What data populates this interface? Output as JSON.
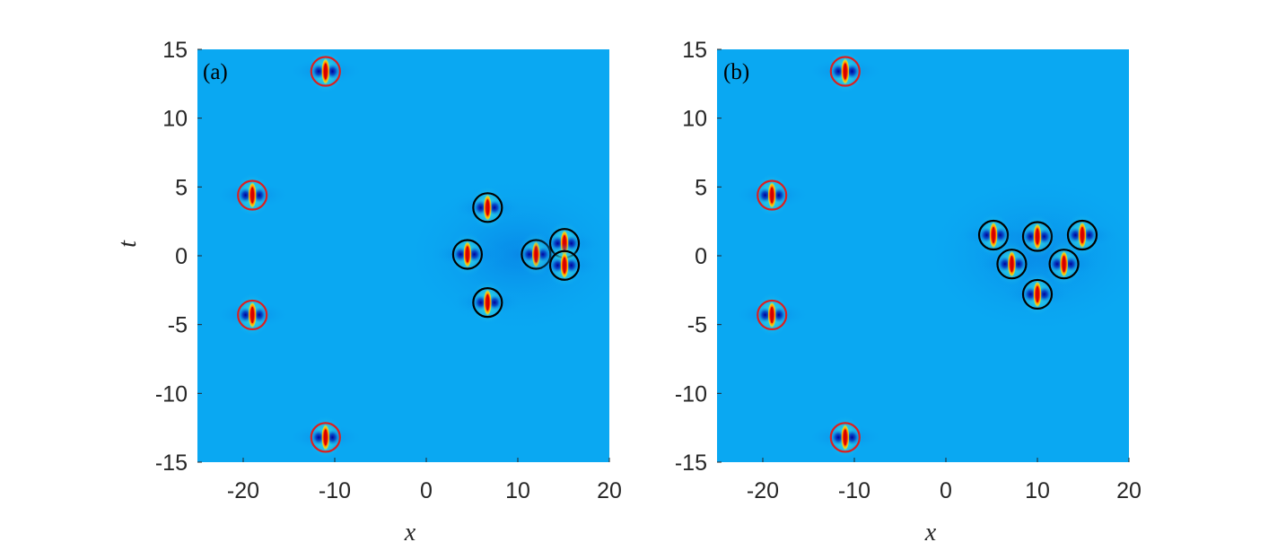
{
  "chart_data": [
    {
      "type": "heatmap",
      "panel_label": "(a)",
      "xlabel": "x",
      "ylabel": "t",
      "xlim": [
        -25,
        20
      ],
      "ylim": [
        -15,
        15
      ],
      "xticks": [
        "-20",
        "-10",
        "0",
        "10",
        "20"
      ],
      "yticks": [
        "15",
        "10",
        "5",
        "0",
        "-5",
        "-10",
        "-15"
      ],
      "peaks": [
        {
          "x": -11,
          "t": 13.4,
          "ring": "red"
        },
        {
          "x": -19,
          "t": 4.4,
          "ring": "red"
        },
        {
          "x": -19,
          "t": -4.3,
          "ring": "red"
        },
        {
          "x": -11,
          "t": -13.2,
          "ring": "red"
        },
        {
          "x": 6.7,
          "t": 3.5,
          "ring": "black"
        },
        {
          "x": 4.5,
          "t": 0.1,
          "ring": "black"
        },
        {
          "x": 6.7,
          "t": -3.4,
          "ring": "black"
        },
        {
          "x": 12.0,
          "t": 0.1,
          "ring": "black"
        },
        {
          "x": 15.1,
          "t": 0.9,
          "ring": "black"
        },
        {
          "x": 15.1,
          "t": -0.7,
          "ring": "black"
        }
      ]
    },
    {
      "type": "heatmap",
      "panel_label": "(b)",
      "xlabel": "x",
      "ylabel": "",
      "xlim": [
        -25,
        20
      ],
      "ylim": [
        -15,
        15
      ],
      "xticks": [
        "-20",
        "-10",
        "0",
        "10",
        "20"
      ],
      "yticks": [
        "15",
        "10",
        "5",
        "0",
        "-5",
        "-10",
        "-15"
      ],
      "peaks": [
        {
          "x": -11,
          "t": 13.4,
          "ring": "red"
        },
        {
          "x": -19,
          "t": 4.4,
          "ring": "red"
        },
        {
          "x": -19,
          "t": -4.3,
          "ring": "red"
        },
        {
          "x": -11,
          "t": -13.2,
          "ring": "red"
        },
        {
          "x": 5.2,
          "t": 1.5,
          "ring": "black"
        },
        {
          "x": 10.0,
          "t": 1.4,
          "ring": "black"
        },
        {
          "x": 14.9,
          "t": 1.5,
          "ring": "black"
        },
        {
          "x": 7.2,
          "t": -0.6,
          "ring": "black"
        },
        {
          "x": 12.9,
          "t": -0.6,
          "ring": "black"
        },
        {
          "x": 10.0,
          "t": -2.8,
          "ring": "black"
        }
      ]
    }
  ],
  "colors": {
    "background": "#0aa8f2",
    "shade": "#0580e6",
    "deep": "#0030b8",
    "dark": "#00009a",
    "hot": "#d40000",
    "warm": "#ffff30",
    "glow": "#39e9d5",
    "ring_red": "#dc1f1f",
    "ring_black": "#000000"
  }
}
